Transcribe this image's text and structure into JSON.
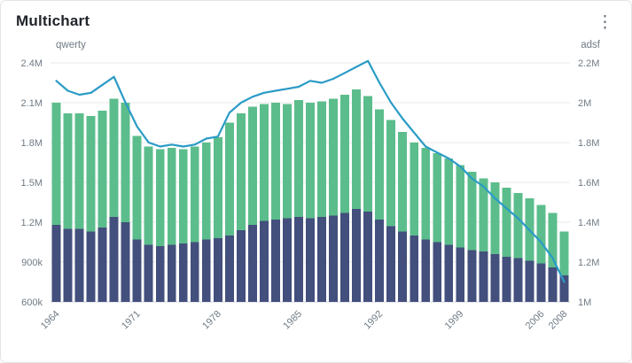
{
  "header": {
    "title": "Multichart",
    "menu_icon": "⋮"
  },
  "colors": {
    "bar_bottom": "#434f7c",
    "bar_top": "#5cbd8c",
    "line": "#2a9bc6",
    "grid": "#e8e8e8",
    "axis_line": "#cfd4d8",
    "tick_text": "#6f7b85",
    "card_border": "#e4e4e4",
    "card_bg": "#ffffff",
    "title_text": "#20242b"
  },
  "chart_data": {
    "type": "mixed",
    "subtype": "stacked-bars-with-line",
    "x_range": [
      1964,
      2008
    ],
    "x_ticks": [
      1964,
      1971,
      1978,
      1985,
      1992,
      1999,
      2006,
      2008
    ],
    "grid": true,
    "legend": false,
    "left_axis": {
      "label": "qwerty",
      "min": 600000,
      "max": 2400000,
      "tick_values": [
        2400000,
        2100000,
        1800000,
        1500000,
        1200000,
        900000,
        600000
      ],
      "tick_labels": [
        "2.4M",
        "2.1M",
        "1.8M",
        "1.5M",
        "1.2M",
        "900k",
        "600k"
      ]
    },
    "right_axis": {
      "label": "adsf",
      "min": 1000000,
      "max": 2200000,
      "tick_values": [
        2200000,
        2000000,
        1800000,
        1600000,
        1400000,
        1200000,
        1000000
      ],
      "tick_labels": [
        "2.2M",
        "2M",
        "1.8M",
        "1.6M",
        "1.4M",
        "1.2M",
        "1M"
      ]
    },
    "series": [
      {
        "name": "bar-lower-dark-blue",
        "type": "bar",
        "stacked": true,
        "axis": "left",
        "color": "#434f7c",
        "values": [
          1180000,
          1150000,
          1150000,
          1130000,
          1160000,
          1240000,
          1200000,
          1070000,
          1030000,
          1020000,
          1030000,
          1040000,
          1050000,
          1070000,
          1080000,
          1100000,
          1140000,
          1180000,
          1210000,
          1220000,
          1230000,
          1240000,
          1230000,
          1240000,
          1250000,
          1270000,
          1300000,
          1280000,
          1220000,
          1170000,
          1130000,
          1100000,
          1070000,
          1050000,
          1030000,
          1010000,
          990000,
          980000,
          960000,
          940000,
          930000,
          910000,
          890000,
          860000,
          800000
        ]
      },
      {
        "name": "bar-upper-green-stacked-total",
        "type": "bar",
        "stacked": true,
        "axis": "left",
        "color": "#5cbd8c",
        "values": [
          2100000,
          2020000,
          2020000,
          2000000,
          2040000,
          2130000,
          2100000,
          1850000,
          1770000,
          1750000,
          1760000,
          1750000,
          1770000,
          1800000,
          1840000,
          1950000,
          2020000,
          2070000,
          2090000,
          2100000,
          2090000,
          2120000,
          2100000,
          2110000,
          2130000,
          2160000,
          2200000,
          2150000,
          2050000,
          1970000,
          1880000,
          1800000,
          1760000,
          1720000,
          1680000,
          1630000,
          1580000,
          1530000,
          1500000,
          1460000,
          1420000,
          1380000,
          1330000,
          1270000,
          1130000
        ]
      },
      {
        "name": "line-blue",
        "type": "line",
        "axis": "right",
        "color": "#2a9bc6",
        "values": [
          2110000,
          2060000,
          2040000,
          2050000,
          2090000,
          2130000,
          2000000,
          1880000,
          1800000,
          1780000,
          1790000,
          1780000,
          1790000,
          1820000,
          1830000,
          1950000,
          2000000,
          2030000,
          2050000,
          2060000,
          2070000,
          2080000,
          2110000,
          2100000,
          2120000,
          2150000,
          2180000,
          2210000,
          2100000,
          2000000,
          1920000,
          1850000,
          1780000,
          1750000,
          1720000,
          1680000,
          1620000,
          1580000,
          1520000,
          1470000,
          1420000,
          1360000,
          1300000,
          1220000,
          1100000
        ]
      }
    ]
  }
}
